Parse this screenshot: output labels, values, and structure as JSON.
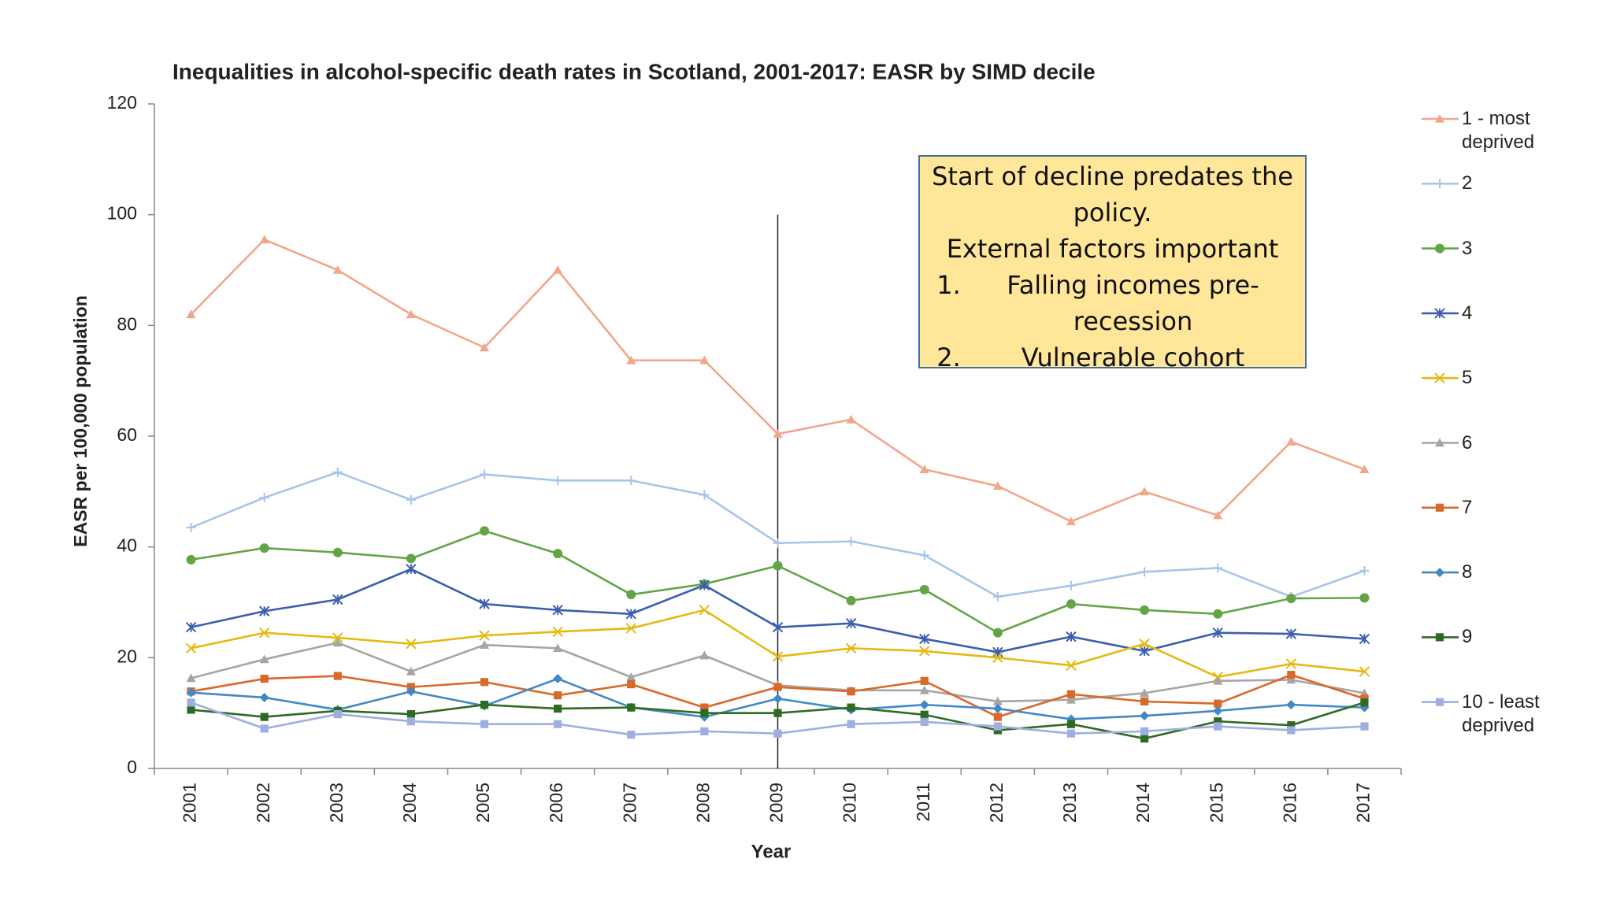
{
  "chart_data": {
    "type": "line",
    "title": "Inequalities in alcohol-specific death rates in Scotland, 2001-2017: EASR by SIMD decile",
    "x_label": "Year",
    "y_label": "EASR per 100,000 population",
    "categories": [
      "2001",
      "2002",
      "2003",
      "2004",
      "2005",
      "2006",
      "2007",
      "2008",
      "2009",
      "2010",
      "2011",
      "2012",
      "2013",
      "2014",
      "2015",
      "2016",
      "2017"
    ],
    "ylim": [
      0,
      120
    ],
    "yticks": [
      0,
      20,
      40,
      60,
      80,
      100,
      120
    ],
    "grid": false,
    "legend": "right",
    "series": [
      {
        "name": "1 - most deprived",
        "color": "#f2a68c",
        "marker": "triangle",
        "values": [
          82,
          95.5,
          90,
          82,
          76,
          90,
          73.7,
          73.7,
          60.4,
          63,
          54,
          51,
          44.6,
          50,
          45.7,
          59,
          54
        ]
      },
      {
        "name": "2",
        "color": "#a6c5e8",
        "marker": "plus",
        "values": [
          43.5,
          48.9,
          53.5,
          48.5,
          53.1,
          52,
          52,
          49.4,
          40.7,
          41,
          38.5,
          31,
          33,
          35.5,
          36.2,
          31,
          35.7
        ]
      },
      {
        "name": "3",
        "color": "#63a546",
        "marker": "circle",
        "values": [
          37.7,
          39.8,
          39,
          37.9,
          42.9,
          38.8,
          31.4,
          33.3,
          36.6,
          30.3,
          32.3,
          24.5,
          29.7,
          28.6,
          27.9,
          30.7,
          30.8
        ]
      },
      {
        "name": "4",
        "color": "#3b5eae",
        "marker": "asterisk",
        "values": [
          25.5,
          28.4,
          30.5,
          36,
          29.7,
          28.6,
          27.9,
          33.1,
          25.5,
          26.2,
          23.4,
          21,
          23.8,
          21.2,
          24.5,
          24.3,
          23.4
        ]
      },
      {
        "name": "5",
        "color": "#e6b911",
        "marker": "x",
        "values": [
          21.7,
          24.5,
          23.6,
          22.5,
          24,
          24.7,
          25.3,
          28.6,
          20.2,
          21.7,
          21.2,
          20,
          18.6,
          22.5,
          16.5,
          18.9,
          17.5
        ]
      },
      {
        "name": "6",
        "color": "#a5a5a5",
        "marker": "triangle",
        "values": [
          16.3,
          19.7,
          22.7,
          17.5,
          22.3,
          21.7,
          16.5,
          20.4,
          15,
          14.1,
          14.1,
          12.1,
          12.4,
          13.6,
          15.8,
          16,
          13.6
        ]
      },
      {
        "name": "7",
        "color": "#d9692a",
        "marker": "square",
        "values": [
          13.9,
          16.2,
          16.7,
          14.7,
          15.6,
          13.2,
          15.2,
          11,
          14.7,
          13.9,
          15.8,
          9.3,
          13.4,
          12.1,
          11.7,
          16.9,
          12.6
        ]
      },
      {
        "name": "8",
        "color": "#4189c6",
        "marker": "diamond",
        "values": [
          13.7,
          12.8,
          10.6,
          13.9,
          11.3,
          16.2,
          11,
          9.3,
          12.6,
          10.6,
          11.5,
          10.8,
          8.9,
          9.5,
          10.4,
          11.5,
          11
        ]
      },
      {
        "name": "9",
        "color": "#2e6b22",
        "marker": "square",
        "values": [
          10.6,
          9.3,
          10.4,
          9.8,
          11.5,
          10.8,
          11,
          10,
          10,
          11,
          9.7,
          6.9,
          8,
          5.4,
          8.5,
          7.8,
          11.9
        ]
      },
      {
        "name": "10 - least deprived",
        "color": "#9eaee0",
        "marker": "square",
        "values": [
          11.9,
          7.2,
          9.8,
          8.5,
          8,
          8,
          6.1,
          6.7,
          6.3,
          8,
          8.4,
          7.6,
          6.3,
          6.7,
          7.6,
          6.9,
          7.6
        ]
      }
    ],
    "reference_line": {
      "category": "2009",
      "top": 100
    },
    "annotation": {
      "lines": [
        "Start of decline predates the policy.",
        "External factors important"
      ],
      "list": [
        "Falling incomes pre-recession",
        "Vulnerable cohort"
      ]
    }
  }
}
